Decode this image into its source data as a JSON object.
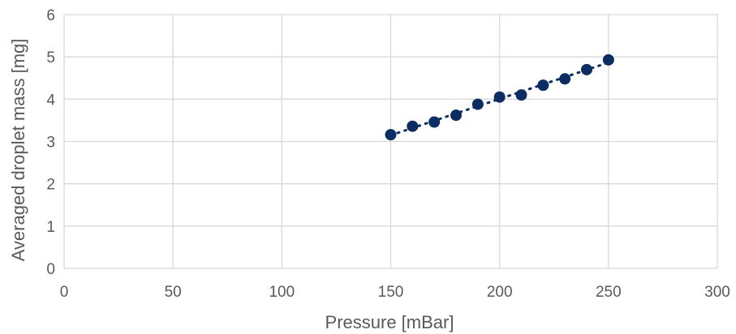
{
  "chart_data": {
    "type": "scatter",
    "title": "",
    "xlabel": "Pressure [mBar]",
    "ylabel": "Averaged droplet mass [mg]",
    "xlim": [
      0,
      300
    ],
    "ylim": [
      0,
      6
    ],
    "x_ticks": [
      0,
      50,
      100,
      150,
      200,
      250,
      300
    ],
    "y_ticks": [
      0,
      1,
      2,
      3,
      4,
      5,
      6
    ],
    "x_tick_labels": [
      "0",
      "50",
      "100",
      "150",
      "200",
      "250",
      "300"
    ],
    "y_tick_labels": [
      "0",
      "1",
      "2",
      "3",
      "4",
      "5",
      "6"
    ],
    "grid": true,
    "legend": "none",
    "trendline": "linear, dotted",
    "marker_color": "#0b2d63",
    "grid_color": "#d9d9d9",
    "series": [
      {
        "x": [
          150,
          160,
          170,
          180,
          190,
          200,
          210,
          220,
          230,
          240,
          250
        ],
        "y": [
          3.16,
          3.36,
          3.46,
          3.62,
          3.88,
          4.05,
          4.1,
          4.33,
          4.48,
          4.7,
          4.93
        ]
      }
    ]
  }
}
